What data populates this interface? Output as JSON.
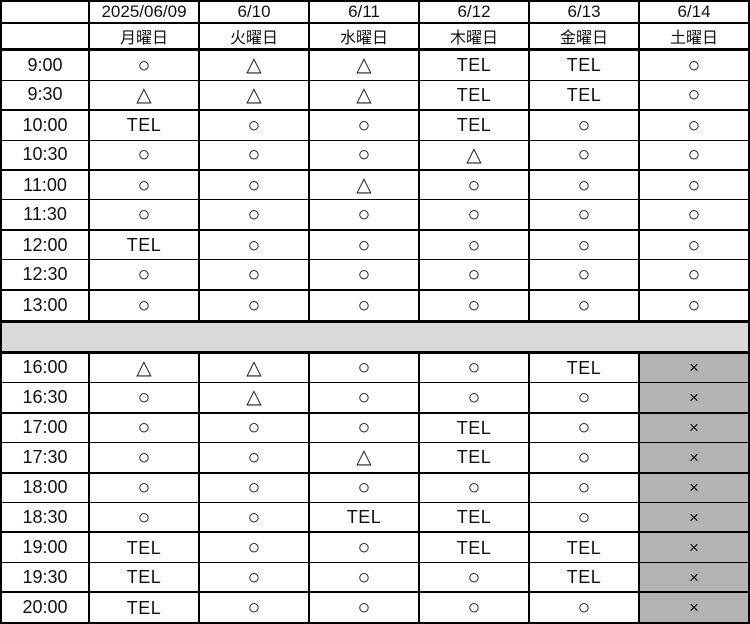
{
  "table": {
    "header": {
      "corner": "",
      "dates": [
        "2025/06/09",
        "6/10",
        "6/11",
        "6/12",
        "6/13",
        "6/14"
      ],
      "days": [
        "月曜日",
        "火曜日",
        "水曜日",
        "木曜日",
        "金曜日",
        "土曜日"
      ]
    },
    "morning": [
      {
        "time": "9:00",
        "cells": [
          "○",
          "△",
          "△",
          "TEL",
          "TEL",
          "○"
        ]
      },
      {
        "time": "9:30",
        "cells": [
          "△",
          "△",
          "△",
          "TEL",
          "TEL",
          "○"
        ]
      },
      {
        "time": "10:00",
        "cells": [
          "TEL",
          "○",
          "○",
          "TEL",
          "○",
          "○"
        ]
      },
      {
        "time": "10:30",
        "cells": [
          "○",
          "○",
          "○",
          "△",
          "○",
          "○"
        ]
      },
      {
        "time": "11:00",
        "cells": [
          "○",
          "○",
          "△",
          "○",
          "○",
          "○"
        ]
      },
      {
        "time": "11:30",
        "cells": [
          "○",
          "○",
          "○",
          "○",
          "○",
          "○"
        ]
      },
      {
        "time": "12:00",
        "cells": [
          "TEL",
          "○",
          "○",
          "○",
          "○",
          "○"
        ]
      },
      {
        "time": "12:30",
        "cells": [
          "○",
          "○",
          "○",
          "○",
          "○",
          "○"
        ]
      },
      {
        "time": "13:00",
        "cells": [
          "○",
          "○",
          "○",
          "○",
          "○",
          "○"
        ]
      }
    ],
    "afternoon": [
      {
        "time": "16:00",
        "cells": [
          "△",
          "△",
          "○",
          "○",
          "TEL",
          "×"
        ]
      },
      {
        "time": "16:30",
        "cells": [
          "○",
          "△",
          "○",
          "○",
          "○",
          "×"
        ]
      },
      {
        "time": "17:00",
        "cells": [
          "○",
          "○",
          "○",
          "TEL",
          "○",
          "×"
        ]
      },
      {
        "time": "17:30",
        "cells": [
          "○",
          "○",
          "△",
          "TEL",
          "○",
          "×"
        ]
      },
      {
        "time": "18:00",
        "cells": [
          "○",
          "○",
          "○",
          "○",
          "○",
          "×"
        ]
      },
      {
        "time": "18:30",
        "cells": [
          "○",
          "○",
          "TEL",
          "TEL",
          "○",
          "×"
        ]
      },
      {
        "time": "19:00",
        "cells": [
          "TEL",
          "○",
          "○",
          "TEL",
          "TEL",
          "×"
        ]
      },
      {
        "time": "19:30",
        "cells": [
          "TEL",
          "○",
          "○",
          "○",
          "TEL",
          "×"
        ]
      },
      {
        "time": "20:00",
        "cells": [
          "TEL",
          "○",
          "○",
          "○",
          "○",
          "×"
        ]
      }
    ],
    "colors": {
      "grid": "#000000",
      "background": "#ffffff",
      "closed_cell_bg": "#b3b3b3",
      "break_band_bg": "#d9d9d9",
      "symbol": "#111111"
    }
  }
}
